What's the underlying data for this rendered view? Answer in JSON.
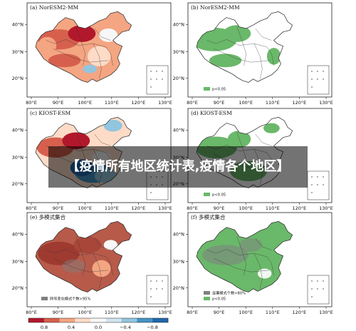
{
  "banner": {
    "text": "【疫情所有地区统计表,疫情各个地区】"
  },
  "axes": {
    "x_ticks": [
      "80°E",
      "90°E",
      "100°E",
      "110°E",
      "120°E",
      "130°E"
    ],
    "y_ticks": [
      "40°N",
      "30°N",
      "20°N"
    ]
  },
  "panels": [
    {
      "label": "(a) NorESM2-MM",
      "kind": "diverging",
      "palette": "red"
    },
    {
      "label": "(b) NorESM2-MM",
      "kind": "significance",
      "legend": "p<0.05"
    },
    {
      "label": "(c) KIOST-ESM",
      "kind": "diverging",
      "palette": "mixed"
    },
    {
      "label": "(d) KIOST-ESM",
      "kind": "significance",
      "legend": "p<0.05"
    },
    {
      "label": "(e) 多模式集合",
      "kind": "ensemble",
      "legend": "同号变化模式个数>95%"
    },
    {
      "label": "(f) 多模式集合",
      "kind": "ensemble-significance",
      "legend_gray": "显著模式个数>80%",
      "legend_green": "p<0.05"
    }
  ],
  "colorbar": {
    "ticks": [
      "0.8",
      "0.4",
      "0.0",
      "−0.4",
      "−0.8"
    ],
    "colors": [
      "#b2182b",
      "#d6604d",
      "#f4a582",
      "#fddbc7",
      "#f7f7f7",
      "#d1e5f0",
      "#92c5de",
      "#4393c3",
      "#2166ac"
    ]
  },
  "colors": {
    "significance_green": "#6ab86a",
    "ensemble_red": "#b75a4a",
    "gray": "#808080"
  }
}
